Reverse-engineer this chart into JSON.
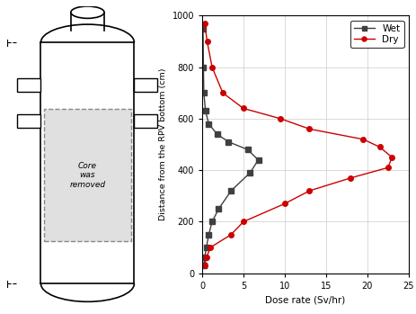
{
  "xlabel": "Dose rate (Sv/hr)",
  "ylabel": "Distance from the RPV bottom (cm)",
  "xlim": [
    0,
    25
  ],
  "ylim": [
    0,
    1000
  ],
  "xticks": [
    0,
    5,
    10,
    15,
    20,
    25
  ],
  "yticks": [
    0,
    200,
    400,
    600,
    800,
    1000
  ],
  "wet_dose": [
    0.2,
    0.3,
    0.5,
    0.8,
    1.2,
    2.0,
    3.5,
    5.8,
    6.8,
    5.5,
    3.2,
    1.8,
    0.8,
    0.4,
    0.2,
    0.15,
    0.1
  ],
  "wet_height": [
    30,
    60,
    100,
    150,
    200,
    250,
    320,
    390,
    440,
    480,
    510,
    540,
    580,
    630,
    700,
    800,
    950
  ],
  "dry_dose": [
    0.3,
    0.5,
    1.0,
    3.5,
    5.0,
    10.0,
    13.0,
    18.0,
    22.5,
    23.0,
    21.5,
    19.5,
    13.0,
    9.5,
    5.0,
    2.5,
    1.2,
    0.6,
    0.3
  ],
  "dry_height": [
    30,
    60,
    100,
    150,
    200,
    270,
    320,
    370,
    410,
    450,
    490,
    520,
    560,
    600,
    640,
    700,
    800,
    900,
    970
  ],
  "wet_color": "#404040",
  "dry_color": "#cc0000",
  "grid_color": "#cccccc",
  "legend_labels": [
    "Wet",
    "Dry"
  ]
}
